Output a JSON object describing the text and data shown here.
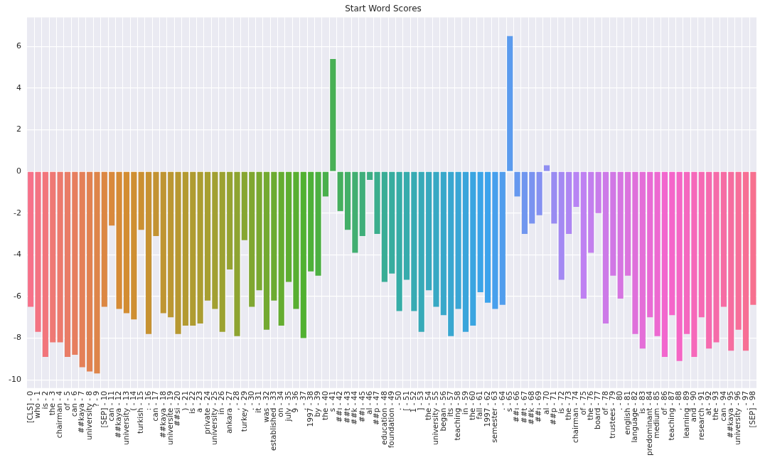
{
  "chart_data": {
    "type": "bar",
    "title": "Start Word Scores",
    "categories": [
      "[CLS] - 0",
      "who - 1",
      "is - 2",
      "the - 3",
      "chairman - 4",
      "of - 5",
      "can - 6",
      "##kaya - 7",
      "university - 8",
      "? - 9",
      "[SEP] - 10",
      "can - 11",
      "##kaya - 12",
      "university - 13",
      "( - 14",
      "turkish - 15",
      ": - 16",
      "can - 17",
      "##kaya - 18",
      "universite - 19",
      "##si - 20",
      ") - 21",
      "is - 22",
      "a - 23",
      "private - 24",
      "university - 25",
      "in - 26",
      "ankara - 27",
      ", - 28",
      "turkey - 29",
      ". - 30",
      "it - 31",
      "was - 32",
      "established - 33",
      "on - 34",
      "july - 35",
      "9 - 36",
      ", - 37",
      "1997 - 38",
      "by - 39",
      "the - 40",
      "s - 41",
      "##ı - 42",
      "##t - 43",
      "##k - 44",
      "##ı - 45",
      "al - 46",
      "##p - 47",
      "education - 48",
      "foundation - 49",
      ". - 50",
      "[ - 51",
      "1 - 52",
      "] - 53",
      "the - 54",
      "university - 55",
      "began - 56",
      "its - 57",
      "teaching - 58",
      "in - 59",
      "the - 60",
      "fall - 61",
      "1997 - 62",
      "semester - 63",
      ". - 64",
      "s - 65",
      "##ı - 66",
      "##t - 67",
      "##k - 68",
      "##ı - 69",
      "al - 70",
      "##p - 71",
      "is - 72",
      "the - 73",
      "chairman - 74",
      "of - 75",
      "the - 76",
      "board - 77",
      "of - 78",
      "trustees - 79",
      ". - 80",
      "english - 81",
      "language - 82",
      "is - 83",
      "predominant - 84",
      "medium - 85",
      "of - 86",
      "teaching - 87",
      ", - 88",
      "learning - 89",
      "and - 90",
      "research - 91",
      "at - 92",
      "the - 93",
      "can - 94",
      "##kaya - 95",
      "university - 96",
      ". - 97",
      "[SEP] - 98"
    ],
    "values": [
      -6.5,
      -7.7,
      -8.9,
      -8.2,
      -8.2,
      -8.9,
      -8.8,
      -9.4,
      -9.6,
      -9.7,
      -6.5,
      -2.6,
      -6.6,
      -6.8,
      -7.1,
      -2.8,
      -7.8,
      -3.1,
      -6.8,
      -7.0,
      -7.8,
      -7.4,
      -7.4,
      -7.3,
      -6.2,
      -6.6,
      -7.7,
      -4.7,
      -7.9,
      -3.3,
      -6.5,
      -5.7,
      -7.6,
      -6.2,
      -7.4,
      -5.3,
      -6.6,
      -8.0,
      -4.8,
      -5.0,
      -1.2,
      5.4,
      -1.9,
      -2.8,
      -3.9,
      -3.1,
      -0.4,
      -3.0,
      -5.3,
      -4.9,
      -6.7,
      -5.2,
      -6.7,
      -7.7,
      -5.7,
      -6.5,
      -6.9,
      -7.9,
      -6.6,
      -7.7,
      -7.4,
      -5.8,
      -6.3,
      -6.6,
      -6.4,
      6.5,
      -1.2,
      -3.0,
      -2.5,
      -2.1,
      0.3,
      -2.5,
      -5.2,
      -3.0,
      -1.7,
      -6.1,
      -3.9,
      -2.0,
      -7.3,
      -5.0,
      -6.1,
      -5.0,
      -7.8,
      -8.5,
      -7.0,
      -7.9,
      -8.9,
      -6.9,
      -9.1,
      -7.8,
      -8.9,
      -7.0,
      -8.5,
      -8.2,
      -6.5,
      -8.6,
      -7.6,
      -8.6,
      -6.4
    ],
    "colors": [
      "#f77189",
      "#f47382",
      "#f2757b",
      "#ef7874",
      "#ec7a6d",
      "#e97c66",
      "#e77e5f",
      "#e48058",
      "#e18251",
      "#de854a",
      "#dc8743",
      "#d9893c",
      "#d68b35",
      "#d38d32",
      "#cf8f32",
      "#cb9032",
      "#c79232",
      "#c39332",
      "#bf9532",
      "#bb9732",
      "#b79831",
      "#b39a31",
      "#af9c31",
      "#ab9d31",
      "#a79f31",
      "#a2a031",
      "#9ca231",
      "#95a331",
      "#8ea431",
      "#87a631",
      "#80a731",
      "#7aa931",
      "#73aa31",
      "#6cab31",
      "#65ad31",
      "#5eae31",
      "#58af31",
      "#51b131",
      "#4eb139",
      "#4cb042",
      "#4ab04c",
      "#48b055",
      "#46af5e",
      "#44af68",
      "#42af71",
      "#3fae7a",
      "#3dae83",
      "#3bae8d",
      "#39ad96",
      "#37ad9f",
      "#36ada7",
      "#37acad",
      "#37abb3",
      "#37aab8",
      "#38a9be",
      "#38a9c4",
      "#39a8ca",
      "#39a7d0",
      "#39a6d5",
      "#3aa5db",
      "#3aa5e1",
      "#3ba4e7",
      "#3ca3ec",
      "#47a0ed",
      "#519ded",
      "#5b9bee",
      "#6698ef",
      "#7096ef",
      "#7a93f0",
      "#8591f1",
      "#8f8ef1",
      "#998bf2",
      "#a489f3",
      "#ae86f3",
      "#b884f4",
      "#bf81f2",
      "#c37fee",
      "#c87ceb",
      "#cd7ae8",
      "#d177e5",
      "#d675e1",
      "#db73de",
      "#df70db",
      "#e46ed8",
      "#e96bd4",
      "#ed69d1",
      "#f267ce",
      "#f565ca",
      "#f566c5",
      "#f567bf",
      "#f668ba",
      "#f669b4",
      "#f66aaf",
      "#f66ba9",
      "#f66ca4",
      "#f66d9f",
      "#f76e99",
      "#f76f94",
      "#f7708f"
    ],
    "ylim": [
      -10.4,
      7.4
    ],
    "yticks": [
      -10,
      -8,
      -6,
      -4,
      -2,
      0,
      2,
      4,
      6
    ],
    "grid": true,
    "legend": false
  }
}
